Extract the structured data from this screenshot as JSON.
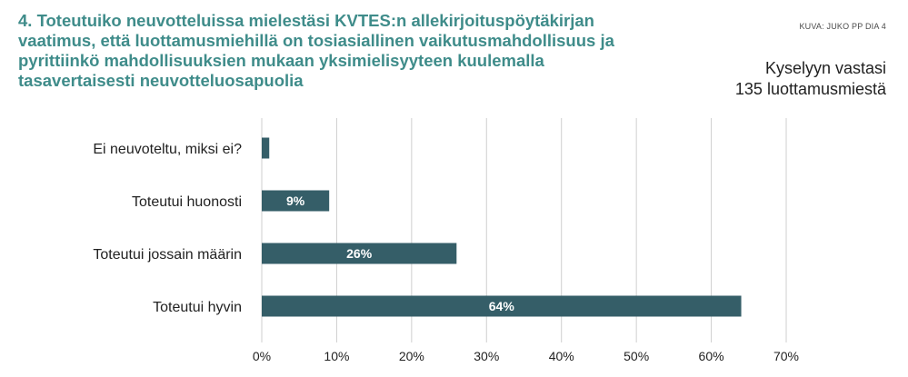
{
  "header": {
    "title": "4. Toteutuiko neuvotteluissa mielestäsi KVTES:n allekirjoituspöytäkirjan vaatimus, että luottamusmiehillä on tosiasiallinen vaikutusmahdollisuus ja pyrittiinkö mahdollisuuksien mukaan yksimielisyyteen kuulemalla tasavertaisesti neuvotteluosapuolia",
    "source": "KUVA: JUKO PP DIA 4",
    "respondents_line1": "Kyselyyn vastasi",
    "respondents_line2": "135 luottamusmiestä"
  },
  "chart_data": {
    "type": "bar",
    "orientation": "horizontal",
    "categories": [
      "Ei neuvoteltu, miksi ei?",
      "Toteutui huonosti",
      "Toteutui jossain määrin",
      "Toteutui hyvin"
    ],
    "values": [
      1,
      9,
      26,
      64
    ],
    "data_labels": [
      "",
      "9%",
      "26%",
      "64%"
    ],
    "xlim": [
      0,
      70
    ],
    "xticks": [
      "0%",
      "10%",
      "20%",
      "30%",
      "40%",
      "50%",
      "60%",
      "70%"
    ],
    "grid": true,
    "bar_color": "#355e68",
    "grid_color": "#cfcfcf"
  }
}
